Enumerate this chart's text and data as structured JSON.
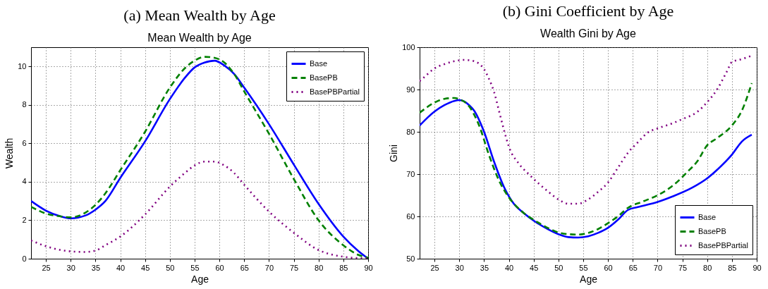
{
  "chart_data": [
    {
      "type": "line",
      "title": "(a) Mean Wealth by Age",
      "subtitle": "Mean Wealth by Age",
      "xlabel": "Age",
      "ylabel": "Wealth",
      "xlim": [
        22,
        90
      ],
      "ylim": [
        0,
        11
      ],
      "xticks": [
        25,
        30,
        35,
        40,
        45,
        50,
        55,
        60,
        65,
        70,
        75,
        80,
        85,
        90
      ],
      "yticks": [
        0,
        2,
        4,
        6,
        8,
        10
      ],
      "grid": true,
      "legend": "top right",
      "x": [
        22,
        25,
        28,
        30,
        33,
        35,
        37,
        40,
        45,
        50,
        53,
        55,
        57,
        59,
        61,
        63,
        65,
        70,
        75,
        80,
        85,
        88,
        90
      ],
      "series": [
        {
          "name": "Base",
          "color": "#0000ff",
          "line_style": "solid",
          "values": [
            3.0,
            2.5,
            2.2,
            2.1,
            2.25,
            2.55,
            3.0,
            4.2,
            6.1,
            8.3,
            9.4,
            9.95,
            10.2,
            10.3,
            10.05,
            9.6,
            8.9,
            7.0,
            4.9,
            2.85,
            1.15,
            0.4,
            0.0
          ]
        },
        {
          "name": "BasePB",
          "color": "#008000",
          "line_style": "dashed",
          "values": [
            2.7,
            2.35,
            2.2,
            2.15,
            2.4,
            2.8,
            3.4,
            4.6,
            6.6,
            8.9,
            9.9,
            10.3,
            10.5,
            10.45,
            10.2,
            9.6,
            8.7,
            6.5,
            4.15,
            2.0,
            0.7,
            0.2,
            0.05
          ]
        },
        {
          "name": "BasePBPartial",
          "color": "#800080",
          "line_style": "dotted",
          "values": [
            0.95,
            0.65,
            0.45,
            0.38,
            0.35,
            0.42,
            0.7,
            1.15,
            2.3,
            3.75,
            4.45,
            4.85,
            5.05,
            5.05,
            4.85,
            4.45,
            3.85,
            2.45,
            1.35,
            0.45,
            0.1,
            0.03,
            0.02
          ]
        }
      ]
    },
    {
      "type": "line",
      "title": "(b) Gini Coefficient by Age",
      "subtitle": "Wealth Gini by Age",
      "xlabel": "Age",
      "ylabel": "Gini",
      "xlim": [
        22,
        90
      ],
      "ylim": [
        50,
        100
      ],
      "xticks": [
        25,
        30,
        35,
        40,
        45,
        50,
        55,
        60,
        65,
        70,
        75,
        80,
        85,
        90
      ],
      "yticks": [
        50,
        60,
        70,
        80,
        90,
        100
      ],
      "grid": true,
      "legend": "bottom right",
      "series": [
        {
          "name": "Base",
          "color": "#0000ff",
          "line_style": "solid",
          "x": [
            22,
            25,
            27,
            29,
            30,
            31,
            32,
            33,
            35,
            37,
            39,
            41,
            43,
            45,
            48,
            50,
            52,
            54,
            56,
            58,
            60,
            62,
            64,
            66,
            70,
            73,
            77,
            80,
            82,
            85,
            87,
            89
          ],
          "values": [
            81.5,
            84.8,
            86.3,
            87.3,
            87.5,
            87.2,
            86.3,
            85,
            80,
            73,
            67,
            63,
            60.8,
            59,
            56.9,
            55.8,
            55.1,
            55,
            55.3,
            56.1,
            57.3,
            59.2,
            61.5,
            62.2,
            63.4,
            64.7,
            66.8,
            69,
            71,
            74.6,
            77.7,
            79.3
          ]
        },
        {
          "name": "BasePB",
          "color": "#008000",
          "line_style": "dashed",
          "x": [
            22,
            25,
            27,
            29,
            30,
            32,
            34,
            36,
            38,
            40,
            43,
            45,
            48,
            50,
            52,
            54,
            56,
            58,
            60,
            62,
            64,
            67,
            70,
            73,
            76,
            78,
            80,
            82,
            85,
            87,
            89
          ],
          "values": [
            84.5,
            86.9,
            87.8,
            88,
            87.7,
            86,
            81.5,
            74.5,
            68.5,
            64.5,
            60.8,
            59.2,
            57.2,
            56.2,
            55.8,
            55.7,
            56.1,
            57,
            58.4,
            60,
            62,
            63.5,
            65,
            67.2,
            70.5,
            73,
            76.8,
            78.5,
            81.5,
            85,
            91.5
          ]
        },
        {
          "name": "BasePBPartial",
          "color": "#800080",
          "line_style": "dotted",
          "x": [
            22,
            23,
            25,
            27,
            29,
            31,
            33,
            34,
            35,
            36,
            37,
            38,
            39,
            40,
            42,
            44,
            46,
            48,
            50,
            52,
            54,
            56,
            58,
            60,
            62,
            64,
            66,
            68,
            70,
            73,
            75,
            78,
            80,
            82,
            84,
            85,
            87,
            89
          ],
          "values": [
            92,
            93,
            95,
            96,
            96.7,
            97,
            96.7,
            96.1,
            94.8,
            92.5,
            89.5,
            85,
            80.5,
            76.5,
            72.5,
            70,
            67.8,
            65.8,
            64,
            63,
            63,
            64,
            65.8,
            68,
            71.5,
            75,
            77.5,
            79.8,
            80.8,
            82,
            83,
            84.7,
            87,
            90,
            94.3,
            96.5,
            97.2,
            98
          ]
        }
      ]
    }
  ]
}
